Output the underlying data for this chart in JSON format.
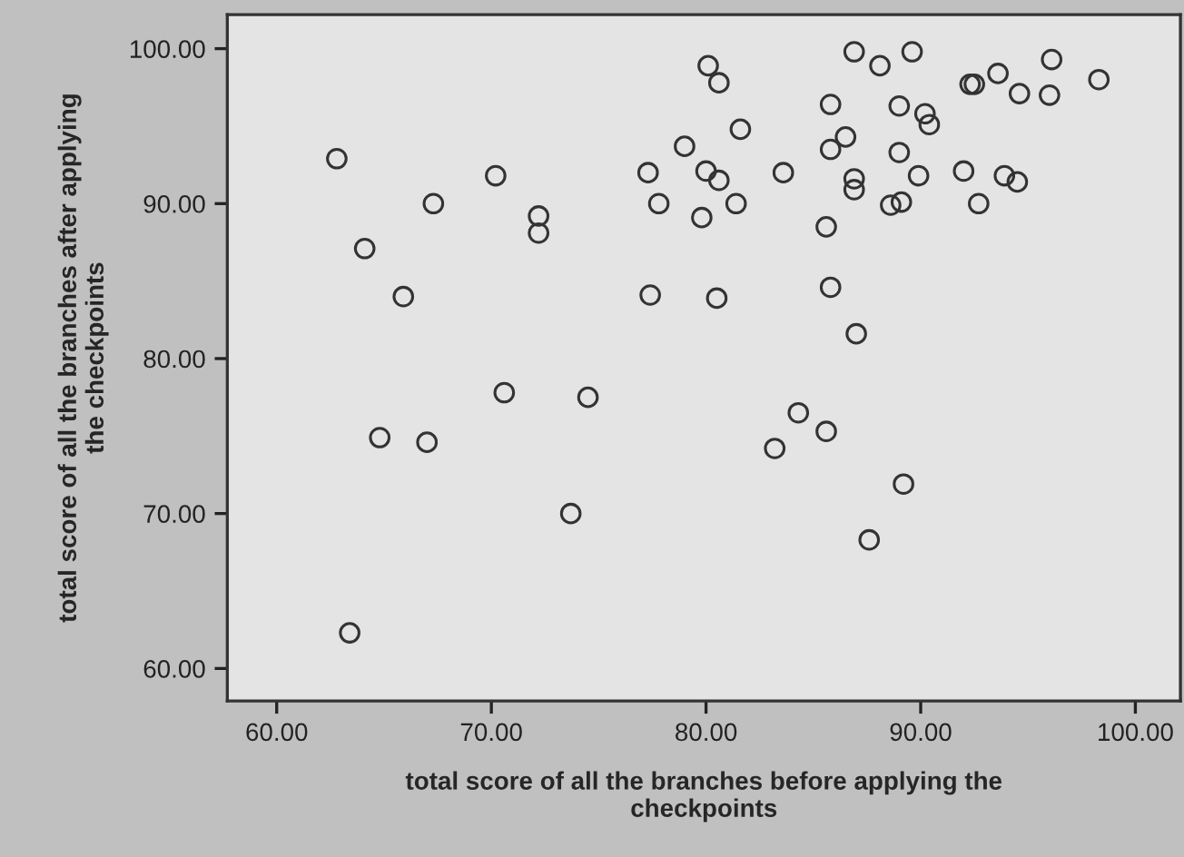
{
  "chart_data": {
    "type": "scatter",
    "xlabel": "total score of all the branches before applying the\ncheckpoints",
    "ylabel": "total score of all the branches after applying\nthe checkpoints",
    "x": [
      62.8,
      70.2,
      67.3,
      64.1,
      65.9,
      72.2,
      72.2,
      77.3,
      79.0,
      77.8,
      79.8,
      80.0,
      80.1,
      77.4,
      80.6,
      81.6,
      80.6,
      81.4,
      80.5,
      83.6,
      85.8,
      86.5,
      85.8,
      86.9,
      88.1,
      89.6,
      89.0,
      90.2,
      90.4,
      89.0,
      86.9,
      86.9,
      89.9,
      88.6,
      89.1,
      85.6,
      85.8,
      87.0,
      92.3,
      92.5,
      93.6,
      96.1,
      94.6,
      96.0,
      98.3,
      92.0,
      93.9,
      94.5,
      92.7,
      70.6,
      74.5,
      64.8,
      67.0,
      73.7,
      63.4,
      84.3,
      85.6,
      83.2,
      89.2,
      87.6
    ],
    "series": [
      {
        "color": "#333333",
        "values": [
          92.9,
          91.8,
          90.0,
          87.1,
          84.0,
          89.2,
          88.1,
          92.0,
          93.7,
          90.0,
          89.1,
          92.1,
          98.9,
          84.1,
          97.8,
          94.8,
          91.5,
          90.0,
          83.9,
          92.0,
          96.4,
          94.3,
          93.5,
          99.8,
          98.9,
          99.8,
          96.3,
          95.8,
          95.1,
          93.3,
          91.6,
          90.9,
          91.8,
          89.9,
          90.1,
          88.5,
          84.6,
          81.6,
          97.7,
          97.7,
          98.4,
          99.3,
          97.1,
          97.0,
          98.0,
          92.1,
          91.8,
          91.4,
          90.0,
          77.8,
          77.5,
          74.9,
          74.6,
          70.0,
          62.3,
          76.5,
          75.3,
          74.2,
          71.9,
          68.3
        ]
      }
    ],
    "xlim": [
      57.7,
      102.1
    ],
    "ylim": [
      57.9,
      102.2
    ],
    "xticks": [
      {
        "value": 60,
        "label": "60.00"
      },
      {
        "value": 70,
        "label": "70.00"
      },
      {
        "value": 80,
        "label": "80.00"
      },
      {
        "value": 90,
        "label": "90.00"
      },
      {
        "value": 100,
        "label": "100.00"
      }
    ],
    "yticks": [
      {
        "value": 60,
        "label": "60.00"
      },
      {
        "value": 70,
        "label": "70.00"
      },
      {
        "value": 80,
        "label": "80.00"
      },
      {
        "value": 90,
        "label": "90.00"
      },
      {
        "value": 100,
        "label": "100.00"
      }
    ],
    "marker": "circle",
    "grid": false,
    "legend": false
  }
}
